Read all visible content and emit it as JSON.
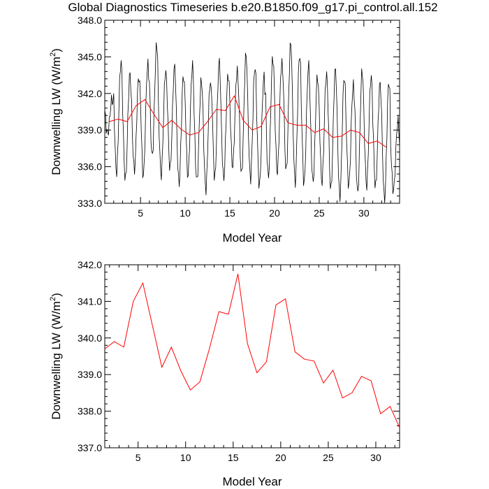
{
  "title": "Global Diagnostics Timeseries b.e20.B1850.f09_g17.pi_control.all.152",
  "colors": {
    "monthly": "#000000",
    "annual": "#ff0000",
    "axis": "#000000"
  },
  "chart_data": [
    {
      "type": "line",
      "xlabel": "Model Year",
      "ylabel": "Downwelling LW (W/m",
      "ylabel_sup": "2",
      "ylabel_close": ")",
      "xlim": [
        1,
        34
      ],
      "ylim": [
        333.0,
        348.0
      ],
      "xticks": [
        5,
        10,
        15,
        20,
        25,
        30
      ],
      "xtick_labels": [
        "5",
        "10",
        "15",
        "20",
        "25",
        "30"
      ],
      "yticks": [
        333.0,
        336.0,
        339.0,
        342.0,
        345.0,
        348.0
      ],
      "ytick_labels": [
        "333.0",
        "336.0",
        "339.0",
        "342.0",
        "345.0",
        "348.0"
      ],
      "monthly_maxima": [
        341.5,
        344.6,
        343.6,
        343.4,
        344.4,
        346.0,
        343.9,
        344.2,
        343.5,
        344.3,
        343.1,
        343.0,
        344.6,
        343.6,
        343.9,
        345.2,
        344.2,
        343.4,
        345.0,
        344.6,
        346.1,
        345.2,
        344.3,
        343.4,
        343.6,
        344.0,
        343.4,
        342.7,
        343.9,
        343.4,
        342.8,
        343.0,
        339.7
      ],
      "monthly_minima": [
        338.7,
        335.5,
        334.9,
        335.7,
        335.2,
        336.8,
        335.3,
        335.8,
        334.6,
        335.2,
        334.8,
        334.1,
        335.0,
        335.0,
        336.0,
        335.3,
        335.0,
        334.4,
        335.1,
        335.5,
        335.6,
        334.7,
        334.6,
        334.7,
        334.7,
        334.1,
        333.5,
        334.4,
        333.8,
        334.4,
        334.3,
        333.3,
        334.0
      ],
      "series": [
        {
          "kind": "annual",
          "x": [
            1.5,
            2.5,
            3.5,
            4.5,
            5.5,
            6.5,
            7.5,
            8.5,
            9.5,
            10.5,
            11.5,
            12.5,
            13.5,
            14.5,
            15.5,
            16.5,
            17.5,
            18.5,
            19.5,
            20.5,
            21.5,
            22.5,
            23.5,
            24.5,
            25.5,
            26.5,
            27.5,
            28.5,
            29.5,
            30.5,
            31.5,
            32.5
          ],
          "values": [
            339.7,
            339.9,
            339.7,
            341.0,
            341.5,
            340.3,
            339.2,
            339.8,
            339.1,
            338.6,
            338.8,
            339.7,
            340.7,
            340.6,
            341.8,
            339.8,
            339.0,
            339.3,
            340.9,
            341.1,
            339.6,
            339.4,
            339.4,
            338.8,
            339.1,
            338.4,
            338.5,
            339.0,
            338.8,
            337.9,
            338.1,
            337.6
          ]
        }
      ]
    },
    {
      "type": "line",
      "xlabel": "Model Year",
      "ylabel": "Downwelling LW (W/m",
      "ylabel_sup": "2",
      "ylabel_close": ")",
      "xlim": [
        1.5,
        32.5
      ],
      "ylim": [
        337.0,
        342.0
      ],
      "xticks": [
        5,
        10,
        15,
        20,
        25,
        30
      ],
      "xtick_labels": [
        "5",
        "10",
        "15",
        "20",
        "25",
        "30"
      ],
      "yticks": [
        337.0,
        338.0,
        339.0,
        340.0,
        341.0,
        342.0
      ],
      "ytick_labels": [
        "337.0",
        "338.0",
        "339.0",
        "340.0",
        "341.0",
        "342.0"
      ],
      "series": [
        {
          "kind": "annual",
          "x": [
            1.5,
            2.5,
            3.5,
            4.5,
            5.5,
            6.5,
            7.5,
            8.5,
            9.5,
            10.5,
            11.5,
            12.5,
            13.5,
            14.5,
            15.5,
            16.5,
            17.5,
            18.5,
            19.5,
            20.5,
            21.5,
            22.5,
            23.5,
            24.5,
            25.5,
            26.5,
            27.5,
            28.5,
            29.5,
            30.5,
            31.5,
            32.5
          ],
          "values": [
            339.7,
            339.9,
            339.75,
            341.0,
            341.5,
            340.35,
            339.2,
            339.75,
            339.1,
            338.58,
            338.8,
            339.7,
            340.72,
            340.65,
            341.75,
            339.85,
            339.05,
            339.35,
            340.9,
            341.07,
            339.62,
            339.42,
            339.37,
            338.77,
            339.12,
            338.36,
            338.5,
            338.95,
            338.83,
            337.93,
            338.13,
            337.55
          ]
        }
      ]
    }
  ]
}
